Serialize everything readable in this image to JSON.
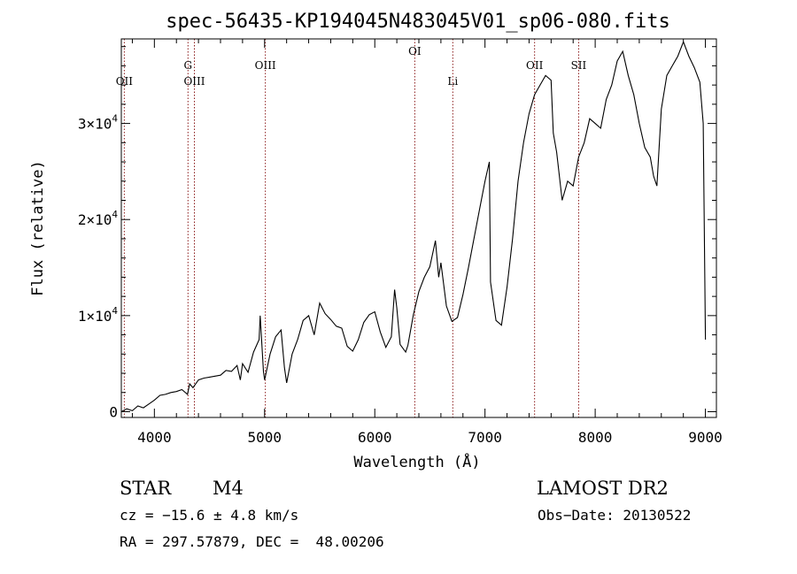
{
  "chart_data": {
    "type": "line",
    "title": "spec-56435-KP194045N483045V01_sp06-080.fits",
    "xlabel": "Wavelength (Å)",
    "ylabel": "Flux (relative)",
    "xlim": [
      3700,
      9100
    ],
    "ylim": [
      -600,
      38800
    ],
    "x_ticks": [
      4000,
      5000,
      6000,
      7000,
      8000,
      9000
    ],
    "y_ticks": [
      {
        "value": 0,
        "mantissa": "0",
        "exponent": ""
      },
      {
        "value": 10000,
        "mantissa": "1×10",
        "exponent": "4"
      },
      {
        "value": 20000,
        "mantissa": "2×10",
        "exponent": "4"
      },
      {
        "value": 30000,
        "mantissa": "3×10",
        "exponent": "4"
      }
    ],
    "spectral_lines": [
      {
        "label": "OII",
        "wavelength": 3727,
        "row": "lower"
      },
      {
        "label": "G",
        "wavelength": 4305,
        "row": "upper"
      },
      {
        "label": "OIII",
        "wavelength": 4363,
        "row": "lower"
      },
      {
        "label": "OIII",
        "wavelength": 5007,
        "row": "upper"
      },
      {
        "label": "OI",
        "wavelength": 6363,
        "row": "top"
      },
      {
        "label": "Li",
        "wavelength": 6708,
        "row": "lower"
      },
      {
        "label": "OII",
        "wavelength": 7450,
        "row": "upper"
      },
      {
        "label": "SII",
        "wavelength": 7850,
        "row": "upper"
      }
    ],
    "series": [
      {
        "points": [
          [
            3700,
            0
          ],
          [
            3750,
            300
          ],
          [
            3800,
            100
          ],
          [
            3850,
            600
          ],
          [
            3900,
            400
          ],
          [
            3950,
            800
          ],
          [
            4000,
            1200
          ],
          [
            4050,
            1700
          ],
          [
            4100,
            1800
          ],
          [
            4150,
            2000
          ],
          [
            4200,
            2100
          ],
          [
            4250,
            2300
          ],
          [
            4300,
            1800
          ],
          [
            4320,
            2900
          ],
          [
            4350,
            2500
          ],
          [
            4400,
            3300
          ],
          [
            4450,
            3500
          ],
          [
            4500,
            3600
          ],
          [
            4550,
            3700
          ],
          [
            4600,
            3800
          ],
          [
            4650,
            4300
          ],
          [
            4700,
            4200
          ],
          [
            4750,
            4800
          ],
          [
            4780,
            3300
          ],
          [
            4800,
            5000
          ],
          [
            4850,
            4100
          ],
          [
            4900,
            6200
          ],
          [
            4950,
            7500
          ],
          [
            4960,
            10000
          ],
          [
            4990,
            4200
          ],
          [
            5000,
            3300
          ],
          [
            5050,
            6000
          ],
          [
            5100,
            7800
          ],
          [
            5150,
            8500
          ],
          [
            5180,
            4600
          ],
          [
            5200,
            3000
          ],
          [
            5250,
            6000
          ],
          [
            5300,
            7500
          ],
          [
            5350,
            9500
          ],
          [
            5400,
            10000
          ],
          [
            5450,
            8000
          ],
          [
            5500,
            11300
          ],
          [
            5550,
            10200
          ],
          [
            5600,
            9600
          ],
          [
            5650,
            8900
          ],
          [
            5700,
            8700
          ],
          [
            5750,
            6800
          ],
          [
            5800,
            6300
          ],
          [
            5850,
            7500
          ],
          [
            5900,
            9300
          ],
          [
            5950,
            10100
          ],
          [
            6000,
            10400
          ],
          [
            6050,
            8300
          ],
          [
            6100,
            6700
          ],
          [
            6150,
            7800
          ],
          [
            6180,
            12700
          ],
          [
            6200,
            10800
          ],
          [
            6230,
            7000
          ],
          [
            6280,
            6200
          ],
          [
            6300,
            6900
          ],
          [
            6350,
            10100
          ],
          [
            6400,
            12500
          ],
          [
            6450,
            14000
          ],
          [
            6500,
            15100
          ],
          [
            6550,
            17800
          ],
          [
            6580,
            14000
          ],
          [
            6600,
            15500
          ],
          [
            6650,
            11000
          ],
          [
            6700,
            9400
          ],
          [
            6750,
            9800
          ],
          [
            6800,
            12200
          ],
          [
            6850,
            15000
          ],
          [
            6900,
            18000
          ],
          [
            6950,
            21000
          ],
          [
            7000,
            24000
          ],
          [
            7040,
            26000
          ],
          [
            7050,
            13500
          ],
          [
            7100,
            9500
          ],
          [
            7150,
            9000
          ],
          [
            7200,
            13000
          ],
          [
            7250,
            18000
          ],
          [
            7300,
            24000
          ],
          [
            7350,
            28000
          ],
          [
            7400,
            31000
          ],
          [
            7450,
            33000
          ],
          [
            7500,
            34000
          ],
          [
            7550,
            35000
          ],
          [
            7600,
            34500
          ],
          [
            7620,
            29000
          ],
          [
            7650,
            27000
          ],
          [
            7700,
            22000
          ],
          [
            7750,
            24000
          ],
          [
            7800,
            23500
          ],
          [
            7850,
            26500
          ],
          [
            7900,
            28000
          ],
          [
            7950,
            30500
          ],
          [
            8000,
            30000
          ],
          [
            8050,
            29500
          ],
          [
            8100,
            32500
          ],
          [
            8150,
            34000
          ],
          [
            8200,
            36500
          ],
          [
            8250,
            37500
          ],
          [
            8300,
            35000
          ],
          [
            8350,
            33000
          ],
          [
            8400,
            30000
          ],
          [
            8450,
            27500
          ],
          [
            8500,
            26500
          ],
          [
            8530,
            24500
          ],
          [
            8560,
            23500
          ],
          [
            8600,
            31500
          ],
          [
            8650,
            35000
          ],
          [
            8700,
            36000
          ],
          [
            8750,
            37000
          ],
          [
            8800,
            38500
          ],
          [
            8850,
            37000
          ],
          [
            8900,
            35800
          ],
          [
            8950,
            34300
          ],
          [
            8980,
            30000
          ],
          [
            9000,
            7500
          ]
        ]
      }
    ]
  },
  "info": {
    "object_type": "STAR",
    "subclass": "M4",
    "survey": "LAMOST DR2",
    "cz": "cz = −15.6 ± 4.8 km/s",
    "obs_date": "Obs−Date: 20130522",
    "coords": "RA = 297.57879, DEC =  48.00206"
  },
  "colors": {
    "line": "#000000",
    "marker_lines": "#8b1a1a",
    "axes": "#000000",
    "background": "#ffffff"
  }
}
